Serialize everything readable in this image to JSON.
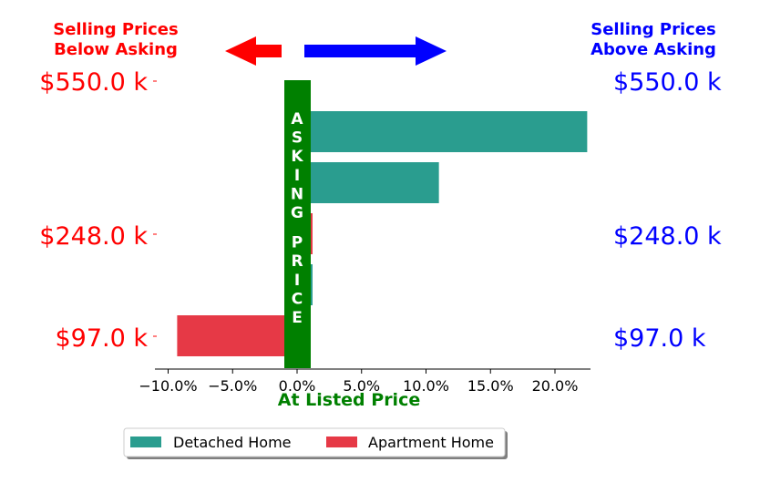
{
  "chart_data": {
    "type": "bar",
    "orientation": "horizontal",
    "title": "",
    "xlabel": "At Listed Price",
    "ylabel": "",
    "xlim": [
      -11,
      23.5
    ],
    "x_ticks": [
      {
        "value": -10,
        "label": "−10.0%"
      },
      {
        "value": -5,
        "label": "−5.0%"
      },
      {
        "value": 0,
        "label": "0.0%"
      },
      {
        "value": 5,
        "label": "5.0%"
      },
      {
        "value": 10,
        "label": "10.0%"
      },
      {
        "value": 15,
        "label": "15.0%"
      },
      {
        "value": 20,
        "label": "20.0%"
      }
    ],
    "price_labels": [
      "$550.0 k",
      "$248.0 k",
      "$97.0 k"
    ],
    "header_left": [
      "Selling Prices",
      "Below Asking"
    ],
    "header_right": [
      "Selling Prices",
      "Above Asking"
    ],
    "center_banner": [
      "A",
      "S",
      "K",
      "I",
      "N",
      "G",
      "",
      "P",
      "R",
      "I",
      "C",
      "E"
    ],
    "bars": [
      {
        "series": "Detached Home",
        "value": 22.5
      },
      {
        "series": "Detached Home",
        "value": 11.0
      },
      {
        "series": "Apartment Home",
        "value": 1.2
      },
      {
        "series": "Detached Home",
        "value": 1.2
      },
      {
        "series": "Apartment Home",
        "value": -9.3
      }
    ],
    "legend": [
      {
        "name": "Detached Home",
        "color": "#2a9d8f"
      },
      {
        "name": "Apartment Home",
        "color": "#e63946"
      }
    ],
    "legend_position": "bottom-center",
    "colors": {
      "detached": "#2a9d8f",
      "apartment": "#e63946",
      "banner": "#008000",
      "below": "#ff0000",
      "above": "#0000ff",
      "xlabel": "#008000"
    },
    "grid": false
  }
}
